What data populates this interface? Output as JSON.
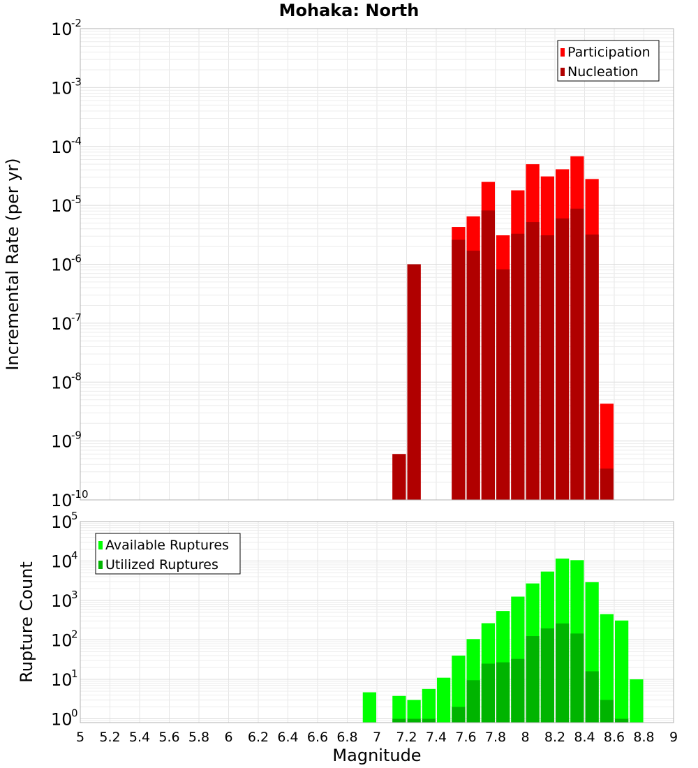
{
  "chart_data": {
    "title": "Mohaka: North",
    "xlabel": "Magnitude",
    "xlim": [
      5,
      9
    ],
    "x_ticks": [
      "5",
      "5.2",
      "5.4",
      "5.6",
      "5.8",
      "6",
      "6.2",
      "6.4",
      "6.6",
      "6.8",
      "7",
      "7.2",
      "7.4",
      "7.6",
      "7.8",
      "8",
      "8.2",
      "8.4",
      "8.6",
      "8.8",
      "9"
    ],
    "grid": true,
    "panels": [
      {
        "type": "bar",
        "y_scale": "log",
        "ylabel": "Incremental Rate (per yr)",
        "ylim": [
          1e-10,
          0.01
        ],
        "y_tick_exponents": [
          "-2",
          "-3",
          "-4",
          "-5",
          "-6",
          "-7",
          "-8",
          "-9",
          "-10"
        ],
        "legend_position": "top-right",
        "series": [
          {
            "name": "Participation",
            "color": "#ff0000",
            "x": [
              7.15,
              7.25,
              7.55,
              7.65,
              7.75,
              7.85,
              7.95,
              8.05,
              8.15,
              8.25,
              8.35,
              8.45,
              8.55
            ],
            "values": [
              6e-10,
              1e-06,
              4.3e-06,
              6.5e-06,
              2.5e-05,
              3.1e-06,
              1.8e-05,
              5e-05,
              3.1e-05,
              4.1e-05,
              6.8e-05,
              2.8e-05,
              4.3e-09
            ]
          },
          {
            "name": "Nucleation",
            "color": "#b00000",
            "x": [
              7.15,
              7.25,
              7.55,
              7.65,
              7.75,
              7.85,
              7.95,
              8.05,
              8.15,
              8.25,
              8.35,
              8.45,
              8.55
            ],
            "values": [
              6e-10,
              1e-06,
              2.6e-06,
              1.7e-06,
              8.2e-06,
              8.2e-07,
              3.3e-06,
              5.2e-06,
              3.1e-06,
              6e-06,
              8.8e-06,
              3.2e-06,
              3.4e-10
            ]
          }
        ]
      },
      {
        "type": "bar",
        "y_scale": "log",
        "ylabel": "Rupture Count",
        "ylim": [
          0.8,
          100000.0
        ],
        "y_tick_exponents": [
          "5",
          "4",
          "3",
          "2",
          "1",
          "0"
        ],
        "legend_position": "top-left",
        "series": [
          {
            "name": "Available Ruptures",
            "color": "#00ff00",
            "x": [
              6.95,
              7.15,
              7.25,
              7.35,
              7.45,
              7.55,
              7.65,
              7.75,
              7.85,
              7.95,
              8.05,
              8.15,
              8.25,
              8.35,
              8.45,
              8.55,
              8.65,
              8.75
            ],
            "values": [
              4.7,
              3.8,
              3,
              5.7,
              11,
              40,
              105,
              265,
              540,
              1250,
              2700,
              5400,
              11500,
              10500,
              2900,
              450,
              310,
              10
            ]
          },
          {
            "name": "Utilized Ruptures",
            "color": "#00b400",
            "x": [
              7.15,
              7.25,
              7.35,
              7.55,
              7.65,
              7.75,
              7.85,
              7.95,
              8.05,
              8.15,
              8.25,
              8.35,
              8.45,
              8.55,
              8.65
            ],
            "values": [
              1,
              1,
              1,
              2,
              9.5,
              25,
              27,
              33,
              125,
              195,
              260,
              145,
              16,
              3,
              1
            ]
          }
        ]
      }
    ]
  }
}
